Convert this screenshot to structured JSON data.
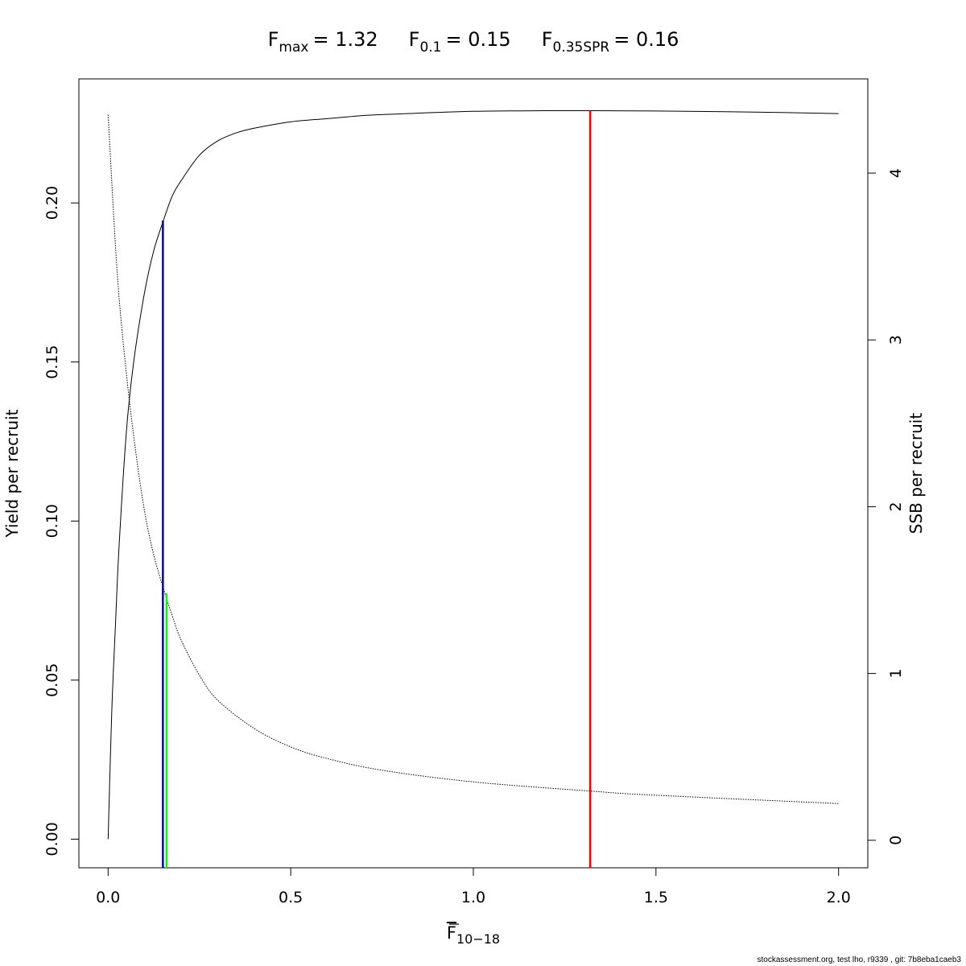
{
  "chart_data": {
    "type": "line",
    "title_parts": [
      {
        "sym": "F",
        "sub": "max",
        "value": "= 1.32"
      },
      {
        "sym": "F",
        "sub": "0.1",
        "value": "= 0.15"
      },
      {
        "sym": "F",
        "sub": "0.35SPR",
        "value": "= 0.16"
      }
    ],
    "xlabel": {
      "sym": "F",
      "sub": "10−18"
    },
    "ylabel_left": "Yield per recruit",
    "ylabel_right": "SSB per recruit",
    "xlim": [
      -0.08,
      2.08
    ],
    "ylim_left": [
      -0.009,
      0.239
    ],
    "ylim_right": [
      -0.165,
      4.565
    ],
    "x_ticks": [
      {
        "v": 0.0,
        "label": "0.0"
      },
      {
        "v": 0.5,
        "label": "0.5"
      },
      {
        "v": 1.0,
        "label": "1.0"
      },
      {
        "v": 1.5,
        "label": "1.5"
      },
      {
        "v": 2.0,
        "label": "2.0"
      }
    ],
    "y_ticks_left": [
      {
        "v": 0.0,
        "label": "0.00"
      },
      {
        "v": 0.05,
        "label": "0.05"
      },
      {
        "v": 0.1,
        "label": "0.10"
      },
      {
        "v": 0.15,
        "label": "0.15"
      },
      {
        "v": 0.2,
        "label": "0.20"
      }
    ],
    "y_ticks_right": [
      {
        "v": 0,
        "label": "0"
      },
      {
        "v": 1,
        "label": "1"
      },
      {
        "v": 2,
        "label": "2"
      },
      {
        "v": 3,
        "label": "3"
      },
      {
        "v": 4,
        "label": "4"
      }
    ],
    "series": [
      {
        "axis": "left",
        "style": "solid",
        "color": "#000000",
        "x": [
          0.0,
          0.01,
          0.02,
          0.03,
          0.05,
          0.07,
          0.1,
          0.125,
          0.15,
          0.175,
          0.2,
          0.25,
          0.3,
          0.35,
          0.4,
          0.5,
          0.6,
          0.7,
          0.8,
          1.0,
          1.2,
          1.32,
          1.5,
          1.75,
          2.0
        ],
        "y": [
          0.0,
          0.04,
          0.067,
          0.092,
          0.128,
          0.15,
          0.172,
          0.185,
          0.194,
          0.202,
          0.207,
          0.215,
          0.2195,
          0.222,
          0.2235,
          0.2255,
          0.2265,
          0.2275,
          0.228,
          0.2288,
          0.229,
          0.229,
          0.2289,
          0.2286,
          0.2281
        ]
      },
      {
        "axis": "right",
        "style": "dotted",
        "color": "#000000",
        "x": [
          0.0,
          0.025,
          0.05,
          0.075,
          0.1,
          0.125,
          0.15,
          0.175,
          0.2,
          0.25,
          0.3,
          0.4,
          0.5,
          0.6,
          0.75,
          1.0,
          1.32,
          1.5,
          2.0
        ],
        "y": [
          4.35,
          3.4,
          2.8,
          2.34,
          1.97,
          1.71,
          1.52,
          1.35,
          1.2,
          0.99,
          0.84,
          0.67,
          0.56,
          0.49,
          0.42,
          0.35,
          0.295,
          0.27,
          0.22
        ]
      }
    ],
    "ref_lines": [
      {
        "name": "F0.1",
        "x": 0.15,
        "y_top": 0.1945,
        "axis": "left",
        "color": "#0000cd"
      },
      {
        "name": "F0.35SPR",
        "x": 0.16,
        "y_top": 1.48,
        "axis": "right",
        "color": "#00ff00"
      },
      {
        "name": "Fmax",
        "x": 1.32,
        "y_top": 0.229,
        "axis": "left",
        "color": "#ff0000"
      }
    ]
  },
  "footer": "stockassessment.org, test  lho, r9339 , git: 7b8eba1caeb3"
}
